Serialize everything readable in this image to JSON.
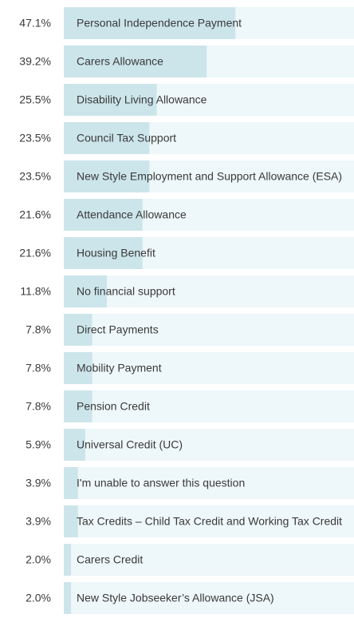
{
  "chart_data": {
    "type": "bar",
    "orientation": "horizontal",
    "categories": [
      "Personal Independence Payment",
      "Carers Allowance",
      "Disability Living Allowance",
      "Council Tax Support",
      "New Style Employment and Support Allowance (ESA)",
      "Attendance Allowance",
      "Housing Benefit",
      "No financial support",
      "Direct Payments",
      "Mobility Payment",
      "Pension Credit",
      "Universal Credit (UC)",
      "I'm unable to answer this question",
      "Tax Credits – Child Tax Credit and Working Tax Credit",
      "Carers Credit",
      "New Style Jobseeker’s Allowance (JSA)"
    ],
    "values": [
      47.1,
      39.2,
      25.5,
      23.5,
      23.5,
      21.6,
      21.6,
      11.8,
      7.8,
      7.8,
      7.8,
      5.9,
      3.9,
      3.9,
      2.0,
      2.0
    ],
    "value_labels": [
      "47.1%",
      "39.2%",
      "25.5%",
      "23.5%",
      "23.5%",
      "21.6%",
      "21.6%",
      "11.8%",
      "7.8%",
      "7.8%",
      "7.8%",
      "5.9%",
      "3.9%",
      "3.9%",
      "2.0%",
      "2.0%"
    ],
    "color": "#cce5eb",
    "track_color": "#eef7f9"
  }
}
